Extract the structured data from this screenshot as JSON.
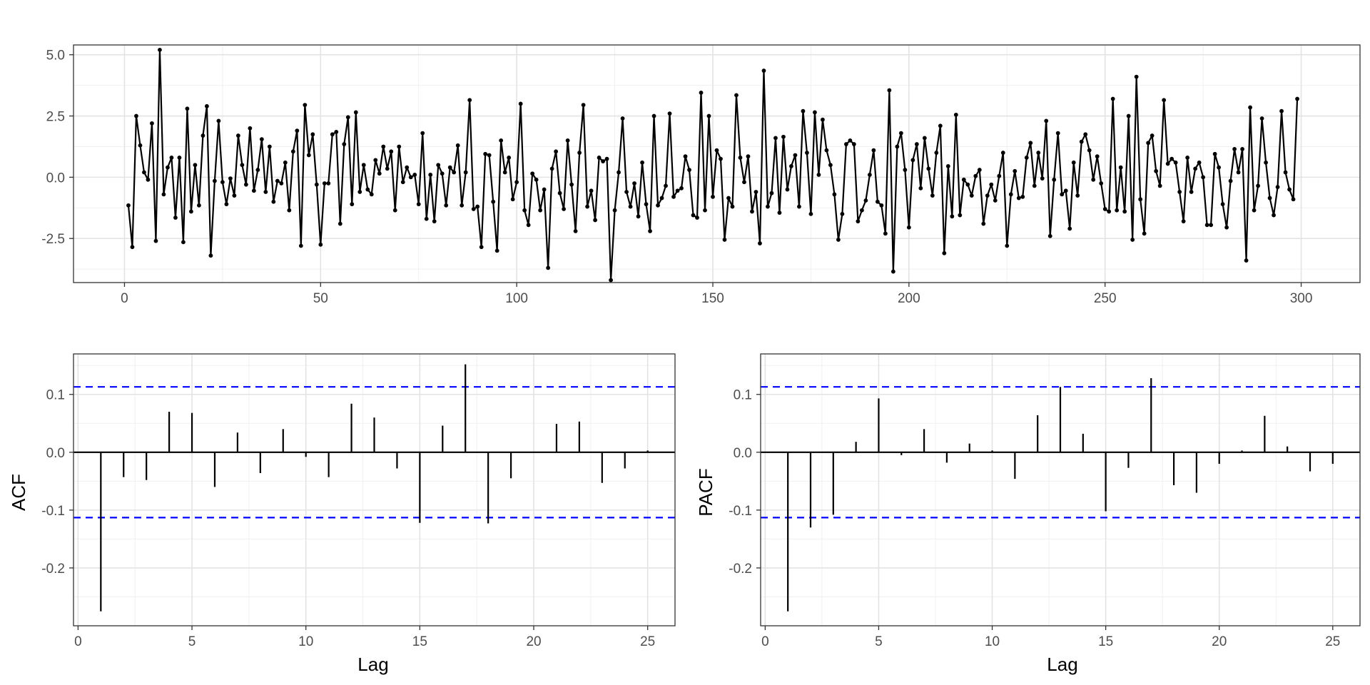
{
  "chart_data": [
    {
      "type": "line",
      "title": "",
      "xlabel": "",
      "ylabel": "",
      "xlim": [
        -13,
        315
      ],
      "ylim": [
        -4.3,
        5.4
      ],
      "x_ticks": [
        0,
        50,
        100,
        150,
        200,
        250,
        300
      ],
      "x_tick_labels": [
        "0",
        "50",
        "100",
        "150",
        "200",
        "250",
        "300"
      ],
      "y_ticks": [
        -2.5,
        0,
        2.5,
        5
      ],
      "y_tick_labels": [
        "-2.5",
        "0.0",
        "2.5",
        "5.0"
      ],
      "grid": true,
      "markers": true,
      "series_color": "#000000",
      "x_start": 1,
      "values": [
        -1.15,
        -2.85,
        2.5,
        1.3,
        0.2,
        -0.1,
        2.2,
        -2.6,
        5.2,
        -0.7,
        0.4,
        0.8,
        -1.65,
        0.8,
        -2.65,
        2.8,
        -1.4,
        0.5,
        -1.15,
        1.7,
        2.9,
        -3.2,
        -0.15,
        2.3,
        -0.2,
        -1.1,
        -0.05,
        -0.75,
        1.7,
        0.5,
        -0.3,
        2.0,
        -0.55,
        0.3,
        1.55,
        -0.6,
        1.25,
        -1.0,
        -0.15,
        -0.25,
        0.6,
        -1.35,
        1.05,
        1.9,
        -2.8,
        2.95,
        0.9,
        1.75,
        -0.3,
        -2.75,
        -0.25,
        -0.25,
        1.75,
        1.85,
        -1.9,
        1.35,
        2.45,
        -1.1,
        2.65,
        -0.6,
        0.5,
        -0.5,
        -0.7,
        0.7,
        0.15,
        1.25,
        0.35,
        1.05,
        -1.35,
        1.25,
        -0.2,
        0.4,
        0.0,
        0.1,
        -1.1,
        1.8,
        -1.7,
        0.1,
        -1.8,
        0.5,
        0.15,
        -1.15,
        0.4,
        0.2,
        1.3,
        -1.15,
        0.2,
        3.15,
        -1.3,
        -1.2,
        -2.85,
        0.95,
        0.9,
        -1.0,
        -3.0,
        1.5,
        0.2,
        0.8,
        -0.9,
        -0.2,
        3.0,
        -1.35,
        -1.95,
        0.15,
        -0.1,
        -1.35,
        -0.5,
        -3.7,
        0.35,
        1.05,
        -0.65,
        -1.3,
        1.5,
        -0.3,
        -2.2,
        1.0,
        2.95,
        -1.2,
        -0.55,
        -1.75,
        0.8,
        0.65,
        0.75,
        -4.2,
        -1.35,
        0.2,
        2.4,
        -0.6,
        -1.2,
        -0.25,
        -1.6,
        0.6,
        -1.1,
        -2.2,
        2.5,
        -1.15,
        -0.85,
        -0.35,
        2.6,
        -0.8,
        -0.55,
        -0.45,
        0.85,
        0.3,
        -1.55,
        -1.65,
        3.45,
        -1.35,
        2.5,
        -0.8,
        1.1,
        0.75,
        -2.55,
        -0.85,
        -1.2,
        3.35,
        0.8,
        -0.2,
        0.85,
        -1.4,
        -0.6,
        -2.7,
        4.35,
        -1.2,
        -0.65,
        1.6,
        -1.45,
        1.65,
        -0.5,
        0.45,
        0.9,
        -1.2,
        2.7,
        1.0,
        -1.5,
        2.65,
        0.1,
        2.35,
        1.1,
        0.5,
        -0.7,
        -2.55,
        -1.5,
        1.35,
        1.5,
        1.35,
        -1.8,
        -1.35,
        -0.95,
        0.1,
        1.1,
        -1.0,
        -1.15,
        -2.3,
        3.55,
        -3.85,
        1.25,
        1.8,
        0.3,
        -2.05,
        0.7,
        1.35,
        -0.45,
        1.6,
        0.35,
        -0.75,
        1.0,
        2.1,
        -3.1,
        0.45,
        -1.6,
        2.55,
        -1.55,
        -0.1,
        -0.3,
        -0.75,
        0.05,
        0.3,
        -1.9,
        -0.75,
        -0.3,
        -0.95,
        0.05,
        1.0,
        -2.8,
        -0.7,
        0.25,
        -0.85,
        -0.8,
        0.8,
        1.4,
        -0.35,
        1.0,
        -0.05,
        2.3,
        -2.4,
        -0.1,
        1.8,
        -0.7,
        -0.55,
        -2.1,
        0.6,
        -0.75,
        1.45,
        1.75,
        1.1,
        -0.1,
        0.85,
        -0.25,
        -1.3,
        -1.4,
        3.2,
        -1.35,
        0.4,
        -1.4,
        2.5,
        -2.55,
        4.1,
        -0.9,
        -2.3,
        1.4,
        1.7,
        0.25,
        -0.35,
        3.15,
        0.55,
        0.75,
        0.6,
        -0.6,
        -1.8,
        0.8,
        -0.6,
        0.35,
        0.6,
        0.0,
        -1.95,
        -1.95,
        0.95,
        0.4,
        -1.1,
        -2.05,
        -0.15,
        1.15,
        0.2,
        1.15,
        -3.4,
        2.85,
        -1.35,
        -0.35,
        2.4,
        0.6,
        -0.85,
        -1.55,
        -0.4,
        2.7,
        0.2,
        -0.5,
        -0.9,
        3.2
      ]
    },
    {
      "type": "bar",
      "title": "",
      "xlabel": "Lag",
      "ylabel": "ACF",
      "xlim": [
        -0.2,
        26.2
      ],
      "ylim": [
        -0.3,
        0.17
      ],
      "x_ticks": [
        0,
        5,
        10,
        15,
        20,
        25
      ],
      "x_tick_labels": [
        "0",
        "5",
        "10",
        "15",
        "20",
        "25"
      ],
      "y_ticks": [
        -0.2,
        -0.1,
        0.0,
        0.1
      ],
      "y_tick_labels": [
        "-0.2",
        "-0.1",
        "0.0",
        "0.1"
      ],
      "grid": true,
      "x": [
        1,
        2,
        3,
        4,
        5,
        6,
        7,
        8,
        9,
        10,
        11,
        12,
        13,
        14,
        15,
        16,
        17,
        18,
        19,
        20,
        21,
        22,
        23,
        24,
        25
      ],
      "values": [
        -0.275,
        -0.043,
        -0.048,
        0.07,
        0.068,
        -0.06,
        0.034,
        -0.036,
        0.04,
        -0.008,
        -0.043,
        0.084,
        0.06,
        -0.028,
        -0.122,
        0.046,
        0.152,
        -0.123,
        -0.045,
        0.0,
        0.049,
        0.053,
        -0.053,
        -0.028,
        0.003
      ],
      "confidence_bound": 0.113,
      "bound_color": "#0000ff"
    },
    {
      "type": "bar",
      "title": "",
      "xlabel": "Lag",
      "ylabel": "PACF",
      "xlim": [
        -0.2,
        26.2
      ],
      "ylim": [
        -0.3,
        0.17
      ],
      "x_ticks": [
        0,
        5,
        10,
        15,
        20,
        25
      ],
      "x_tick_labels": [
        "0",
        "5",
        "10",
        "15",
        "20",
        "25"
      ],
      "y_ticks": [
        -0.2,
        -0.1,
        0.0,
        0.1
      ],
      "y_tick_labels": [
        "-0.2",
        "-0.1",
        "0.0",
        "0.1"
      ],
      "grid": true,
      "x": [
        1,
        2,
        3,
        4,
        5,
        6,
        7,
        8,
        9,
        10,
        11,
        12,
        13,
        14,
        15,
        16,
        17,
        18,
        19,
        20,
        21,
        22,
        23,
        24,
        25
      ],
      "values": [
        -0.275,
        -0.13,
        -0.108,
        0.018,
        0.093,
        -0.005,
        0.04,
        -0.018,
        0.015,
        0.003,
        -0.046,
        0.064,
        0.113,
        0.032,
        -0.102,
        -0.027,
        0.128,
        -0.057,
        -0.07,
        -0.02,
        0.003,
        0.063,
        0.01,
        -0.033,
        -0.02
      ],
      "confidence_bound": 0.113,
      "bound_color": "#0000ff"
    }
  ]
}
